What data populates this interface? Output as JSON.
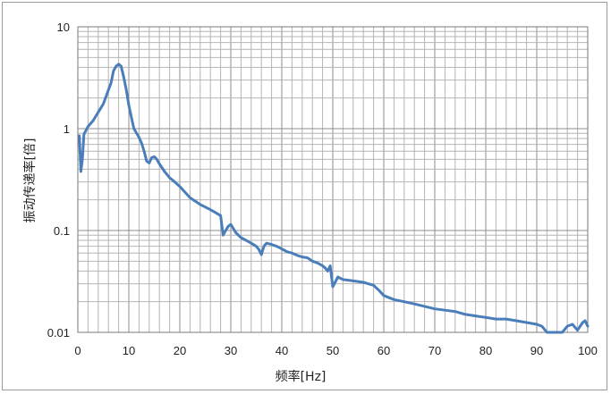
{
  "chart_data": {
    "type": "line",
    "xlabel": "频率[Hz]",
    "ylabel": "振动传递率[倍]",
    "xlim": [
      0,
      100
    ],
    "ylim": [
      0.01,
      10
    ],
    "yscale": "log",
    "grid": true,
    "x_ticks": [
      "0",
      "10",
      "20",
      "30",
      "40",
      "50",
      "60",
      "70",
      "80",
      "90",
      "100"
    ],
    "y_ticks": [
      "0.01",
      "0.1",
      "1",
      "10"
    ],
    "line_color": "#4a7ebb",
    "series": [
      {
        "x": [
          0.3,
          0.6,
          0.9,
          1.2,
          2,
          3,
          4,
          5,
          6,
          6.5,
          7,
          7.5,
          8,
          8.5,
          9,
          9.5,
          10,
          10.5,
          11,
          12,
          12.5,
          13,
          13.5,
          14,
          14.5,
          15,
          15.5,
          16,
          17,
          18,
          19,
          20,
          22,
          24,
          26,
          27,
          28,
          28.5,
          29,
          29.5,
          30,
          31,
          32,
          33,
          34,
          35,
          35.5,
          36,
          36.5,
          37,
          38,
          39,
          40,
          41,
          42,
          43,
          44,
          45,
          46,
          47,
          48,
          48.5,
          49,
          49.5,
          50,
          51,
          52,
          54,
          56,
          58,
          59,
          60,
          62,
          64,
          66,
          68,
          70,
          72,
          74,
          76,
          78,
          80,
          82,
          84,
          86,
          88,
          90,
          91,
          92,
          95,
          96,
          97,
          98,
          99,
          99.5,
          100
        ],
        "y": [
          0.85,
          0.38,
          0.5,
          0.88,
          1.05,
          1.2,
          1.45,
          1.75,
          2.4,
          2.8,
          3.7,
          4.1,
          4.3,
          4.1,
          3.2,
          2.4,
          1.7,
          1.3,
          1.0,
          0.82,
          0.72,
          0.6,
          0.48,
          0.46,
          0.52,
          0.53,
          0.5,
          0.45,
          0.38,
          0.33,
          0.3,
          0.27,
          0.21,
          0.18,
          0.16,
          0.15,
          0.14,
          0.09,
          0.1,
          0.11,
          0.115,
          0.095,
          0.085,
          0.08,
          0.075,
          0.07,
          0.065,
          0.058,
          0.07,
          0.075,
          0.073,
          0.07,
          0.066,
          0.062,
          0.06,
          0.057,
          0.055,
          0.054,
          0.05,
          0.048,
          0.045,
          0.043,
          0.04,
          0.045,
          0.028,
          0.035,
          0.033,
          0.032,
          0.031,
          0.029,
          0.026,
          0.023,
          0.021,
          0.02,
          0.019,
          0.018,
          0.017,
          0.0165,
          0.016,
          0.015,
          0.0145,
          0.014,
          0.0135,
          0.0135,
          0.013,
          0.0125,
          0.012,
          0.0115,
          0.01,
          0.01,
          0.0115,
          0.012,
          0.0105,
          0.0125,
          0.013,
          0.0115
        ]
      }
    ]
  }
}
